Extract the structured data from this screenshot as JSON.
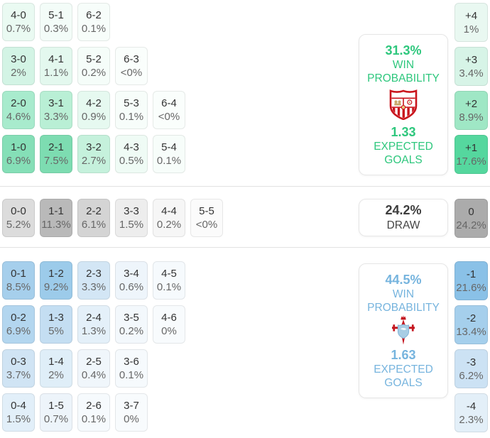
{
  "colors": {
    "home_accent": "#2ec77d",
    "away_accent": "#76b4de",
    "draw_text": "#3d3d3d",
    "score_text": "#333333",
    "pct_text": "#676767",
    "home_strong_cell": "#55d79e",
    "away_strong_cell": "#8ac1e7",
    "draw_strong_cell": "#ababab"
  },
  "home": {
    "panel": {
      "win_value": "31.3%",
      "win_word1": "WIN",
      "win_word2": "PROBABILITY",
      "xg_value": "1.33",
      "xg_word1": "EXPECTED",
      "xg_word2": "GOALS",
      "crest": "sevilla-crest"
    },
    "rows": [
      [
        {
          "score": "4-0",
          "pct": "0.7%",
          "bg": "#eafaf2"
        },
        {
          "score": "5-1",
          "pct": "0.3%",
          "bg": "#f3fcf8"
        },
        {
          "score": "6-2",
          "pct": "0.1%",
          "bg": "#f7fdfa"
        }
      ],
      [
        {
          "score": "3-0",
          "pct": "2%",
          "bg": "#d3f4e5"
        },
        {
          "score": "4-1",
          "pct": "1.1%",
          "bg": "#e3f8ee"
        },
        {
          "score": "5-2",
          "pct": "0.2%",
          "bg": "#f5fdf9"
        },
        {
          "score": "6-3",
          "pct": "<0%",
          "bg": "#fafefc"
        }
      ],
      [
        {
          "score": "2-0",
          "pct": "4.6%",
          "bg": "#a8ebcd"
        },
        {
          "score": "3-1",
          "pct": "3.3%",
          "bg": "#b9efd5"
        },
        {
          "score": "4-2",
          "pct": "0.9%",
          "bg": "#e6f9f0"
        },
        {
          "score": "5-3",
          "pct": "0.1%",
          "bg": "#f7fdfa"
        },
        {
          "score": "6-4",
          "pct": "<0%",
          "bg": "#fafefc"
        }
      ],
      [
        {
          "score": "1-0",
          "pct": "6.9%",
          "bg": "#85dfb7"
        },
        {
          "score": "2-1",
          "pct": "7.5%",
          "bg": "#7ddcb1"
        },
        {
          "score": "3-2",
          "pct": "2.7%",
          "bg": "#c5f1dc"
        },
        {
          "score": "4-3",
          "pct": "0.5%",
          "bg": "#effbf5"
        },
        {
          "score": "5-4",
          "pct": "0.1%",
          "bg": "#f7fdfa"
        }
      ]
    ],
    "goal_diff": [
      {
        "diff": "+4",
        "pct": "1%",
        "bg": "#e9f8f1"
      },
      {
        "diff": "+3",
        "pct": "3.4%",
        "bg": "#d7f4e7"
      },
      {
        "diff": "+2",
        "pct": "8.9%",
        "bg": "#9fe7c5"
      },
      {
        "diff": "+1",
        "pct": "17.6%",
        "bg": "#55d79e"
      }
    ]
  },
  "draw": {
    "panel": {
      "value": "24.2%",
      "label": "DRAW"
    },
    "cells": [
      {
        "score": "0-0",
        "pct": "5.2%",
        "bg": "#dcdcdc"
      },
      {
        "score": "1-1",
        "pct": "11.3%",
        "bg": "#b9b9b9"
      },
      {
        "score": "2-2",
        "pct": "6.1%",
        "bg": "#d4d4d4"
      },
      {
        "score": "3-3",
        "pct": "1.5%",
        "bg": "#ededed"
      },
      {
        "score": "4-4",
        "pct": "0.2%",
        "bg": "#f6f6f6"
      },
      {
        "score": "5-5",
        "pct": "<0%",
        "bg": "#fbfbfb"
      }
    ],
    "goal_diff": [
      {
        "diff": "0",
        "pct": "24.2%",
        "bg": "#ababab"
      }
    ]
  },
  "away": {
    "panel": {
      "win_value": "44.5%",
      "win_word1": "WIN",
      "win_word2": "PROBABILITY",
      "xg_value": "1.63",
      "xg_word1": "EXPECTED",
      "xg_word2": "GOALS",
      "crest": "celta-vigo-crest"
    },
    "rows": [
      [
        {
          "score": "0-1",
          "pct": "8.5%",
          "bg": "#a6cfec"
        },
        {
          "score": "1-2",
          "pct": "9.2%",
          "bg": "#9ccbea"
        },
        {
          "score": "2-3",
          "pct": "3.3%",
          "bg": "#d3e6f5"
        },
        {
          "score": "3-4",
          "pct": "0.6%",
          "bg": "#eef5fb"
        },
        {
          "score": "4-5",
          "pct": "0.1%",
          "bg": "#f6fafd"
        }
      ],
      [
        {
          "score": "0-2",
          "pct": "6.9%",
          "bg": "#b3d6ef"
        },
        {
          "score": "1-3",
          "pct": "5%",
          "bg": "#c4def2"
        },
        {
          "score": "2-4",
          "pct": "1.3%",
          "bg": "#e4f0f9"
        },
        {
          "score": "3-5",
          "pct": "0.2%",
          "bg": "#f3f8fc"
        },
        {
          "score": "4-6",
          "pct": "0%",
          "bg": "#f8fbfd"
        }
      ],
      [
        {
          "score": "0-3",
          "pct": "3.7%",
          "bg": "#d0e4f4"
        },
        {
          "score": "1-4",
          "pct": "2%",
          "bg": "#dfeef8"
        },
        {
          "score": "2-5",
          "pct": "0.4%",
          "bg": "#f0f6fb"
        },
        {
          "score": "3-6",
          "pct": "0.1%",
          "bg": "#f6fafd"
        }
      ],
      [
        {
          "score": "0-4",
          "pct": "1.5%",
          "bg": "#e2eff9"
        },
        {
          "score": "1-5",
          "pct": "0.7%",
          "bg": "#edf4fa"
        },
        {
          "score": "2-6",
          "pct": "0.1%",
          "bg": "#f6fafd"
        },
        {
          "score": "3-7",
          "pct": "0%",
          "bg": "#f8fbfd"
        }
      ]
    ],
    "goal_diff": [
      {
        "diff": "-1",
        "pct": "21.6%",
        "bg": "#8ac1e7"
      },
      {
        "diff": "-2",
        "pct": "13.4%",
        "bg": "#a5cfec"
      },
      {
        "diff": "-3",
        "pct": "6.2%",
        "bg": "#cce2f4"
      },
      {
        "diff": "-4",
        "pct": "2.3%",
        "bg": "#e3eff8"
      }
    ]
  }
}
